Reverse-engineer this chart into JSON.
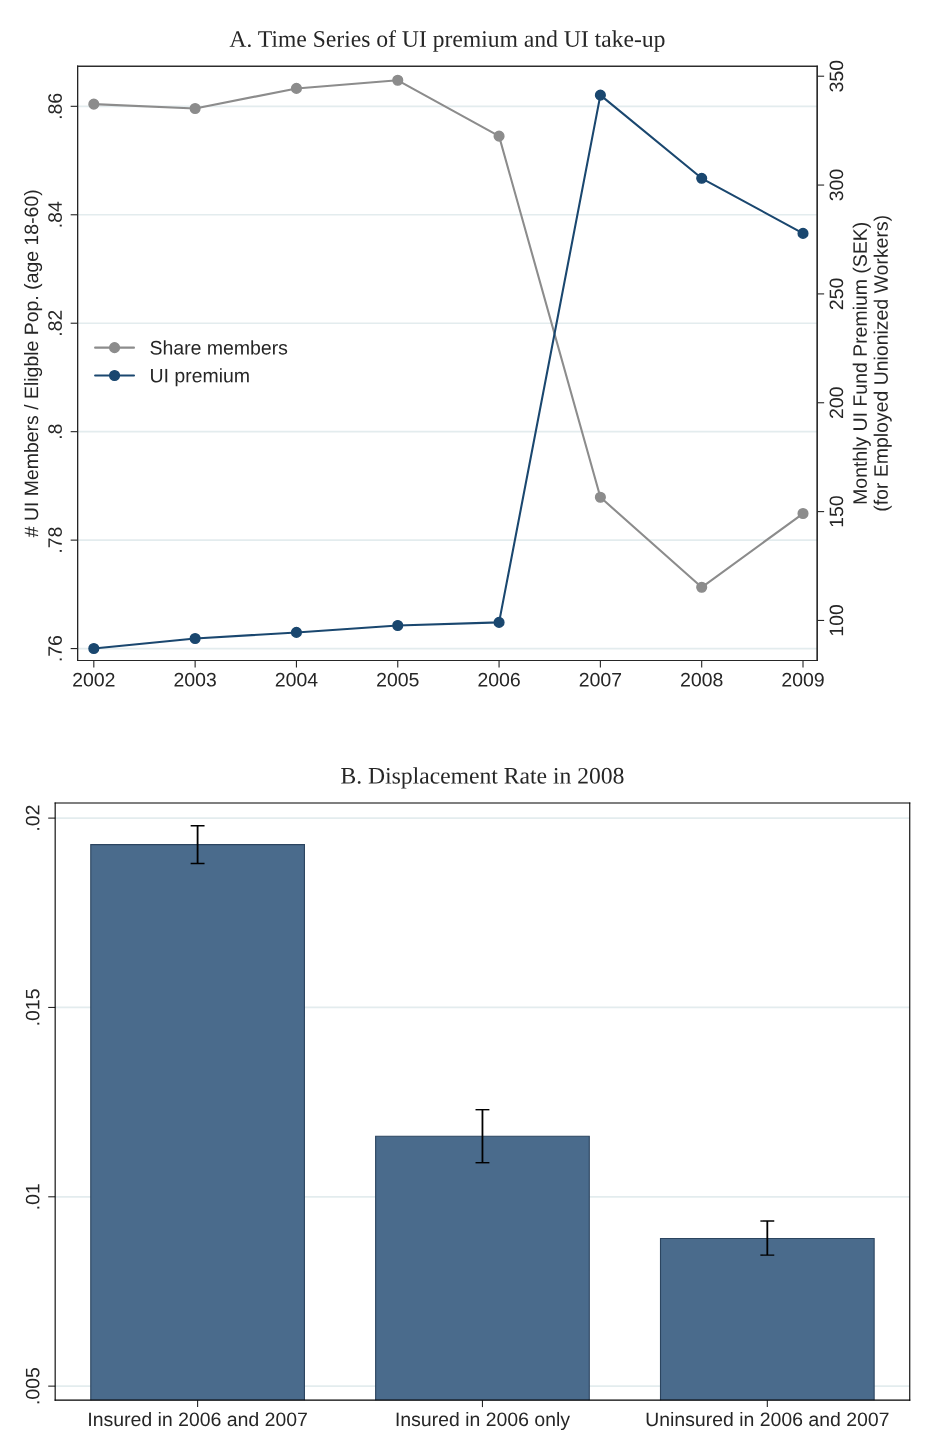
{
  "chart_data": [
    {
      "type": "line",
      "title": "A. Time Series of UI premium and UI take-up",
      "ylabel": "# UI Members / Eligble Pop. (age 18-60)",
      "y2label": "Monthly UI Fund Premium (SEK)\n(for Employed Unionized Workers)",
      "x": [
        2002,
        2003,
        2004,
        2005,
        2006,
        2007,
        2008,
        2009
      ],
      "series": [
        {
          "name": "Share members",
          "color": "#8c8c8c",
          "values": [
            0.8604,
            0.8596,
            0.8633,
            0.8648,
            0.8545,
            0.7879,
            0.7713,
            0.7849
          ]
        },
        {
          "name": "UI premium",
          "color": "#1a476f",
          "axis": "y2",
          "values": [
            87.1,
            91.7,
            94.5,
            97.7,
            99.1,
            341.3,
            303.1,
            277.8
          ]
        }
      ],
      "xlim": [
        2001.84,
        2009.14
      ],
      "xticks": [
        2002,
        2003,
        2004,
        2005,
        2006,
        2007,
        2008,
        2009
      ],
      "ylim": [
        0.7578,
        0.8674
      ],
      "yticks": [
        {
          "value": 0.76,
          "label": ".76"
        },
        {
          "value": 0.78,
          "label": ".78"
        },
        {
          "value": 0.8,
          "label": ".8"
        },
        {
          "value": 0.82,
          "label": ".82"
        },
        {
          "value": 0.84,
          "label": ".84"
        },
        {
          "value": 0.86,
          "label": ".86"
        }
      ],
      "y2lim": [
        81.6,
        354.6
      ],
      "y2ticks": [
        100,
        150,
        200,
        250,
        300,
        350
      ],
      "grid": "y",
      "legend": "center left",
      "marker": "circle",
      "line_style": "solid"
    },
    {
      "type": "bar",
      "title": "B. Displacement Rate in 2008",
      "categories": [
        "Insured in 2006 and 2007",
        "Insured in 2006 only",
        "Uninsured in 2006 and 2007"
      ],
      "values": [
        0.0193,
        0.0116,
        0.0089
      ],
      "color": "#4a6b8c",
      "errors": [
        [
          0.0188,
          0.0198
        ],
        [
          0.0109,
          0.0123
        ],
        [
          0.00846,
          0.00936
        ]
      ],
      "ylim": [
        0.00463,
        0.0204
      ],
      "yticks": [
        {
          "value": 0.005,
          "label": ".005"
        },
        {
          "value": 0.01,
          "label": ".01"
        },
        {
          "value": 0.015,
          "label": ".015"
        },
        {
          "value": 0.02,
          "label": ".02"
        }
      ],
      "grid": "y"
    }
  ]
}
